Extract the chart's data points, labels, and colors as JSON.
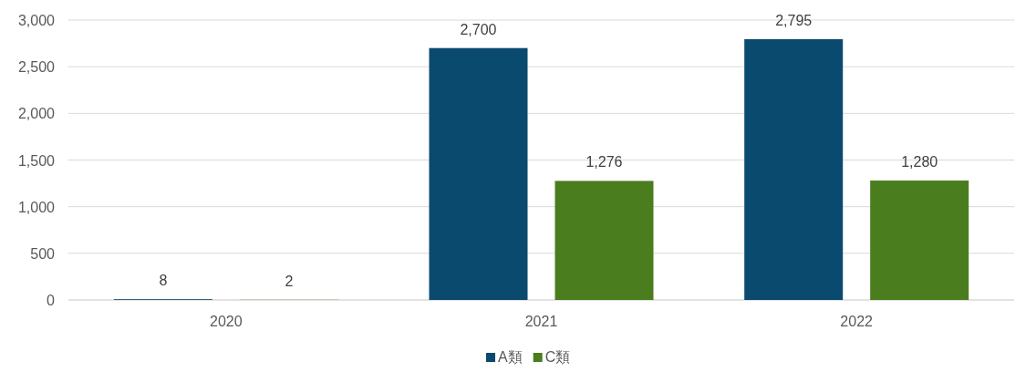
{
  "chart_data": {
    "type": "bar",
    "categories": [
      "2020",
      "2021",
      "2022"
    ],
    "series": [
      {
        "name": "A類",
        "color": "#0b4a6f",
        "values": [
          8,
          2700,
          2795
        ],
        "value_labels": [
          "8",
          "2,700",
          "2,795"
        ]
      },
      {
        "name": "C類",
        "color": "#4a7d1e",
        "values": [
          2,
          1276,
          1280
        ],
        "value_labels": [
          "2",
          "1,276",
          "1,280"
        ]
      }
    ],
    "ylim": [
      0,
      3000
    ],
    "yticks": [
      {
        "value": 0,
        "label": "0"
      },
      {
        "value": 500,
        "label": "500"
      },
      {
        "value": 1000,
        "label": "1,000"
      },
      {
        "value": 1500,
        "label": "1,500"
      },
      {
        "value": 2000,
        "label": "2,000"
      },
      {
        "value": 2500,
        "label": "2,500"
      },
      {
        "value": 3000,
        "label": "3,000"
      }
    ],
    "grid": "y",
    "legend": "bottom"
  }
}
